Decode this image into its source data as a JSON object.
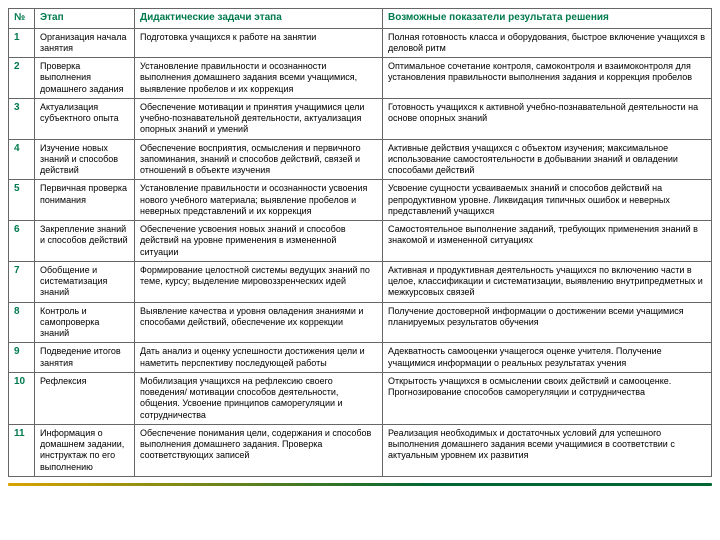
{
  "headers": {
    "num": "№",
    "stage": "Этап",
    "tasks": "Дидактические задачи этапа",
    "results": "Возможные показатели результата решения"
  },
  "rows": [
    {
      "n": "1",
      "stage": "Организация начала занятия",
      "task": "Подготовка учащихся к работе на занятии",
      "result": "Полная готовность класса и оборудования, быстрое включение учащихся в деловой ритм"
    },
    {
      "n": "2",
      "stage": "Проверка выполнения домашнего задания",
      "task": "Установление правильности и осознанности выполнения домашнего задания всеми учащимися, выявление пробелов и их коррекция",
      "result": "Оптимальное сочетание контроля, самоконтроля и взаимоконтроля для установления правильности выполнения задания и коррекция пробелов"
    },
    {
      "n": "3",
      "stage": "Актуализация субъектного опыта",
      "task": "Обеспечение мотивации и принятия учащимися цели учебно-познавательной деятельности, актуализация опорных знаний и умений",
      "result": "Готовность учащихся к активной учебно-познавательной деятельности на основе опорных знаний"
    },
    {
      "n": "4",
      "stage": "Изучение новых знаний и способов действий",
      "task": "Обеспечение восприятия, осмысления и первичного запоминания, знаний и способов действий, связей и отношений в объекте изучения",
      "result": "Активные действия учащихся с объектом изучения; максимальное использование самостоятельности в добывании знаний и овладении способами действий"
    },
    {
      "n": "5",
      "stage": "Первичная проверка понимания",
      "task": "Установление правильности и осознанности усвоения нового учебного материала; выявление пробелов и неверных представлений и их коррекция",
      "result": "Усвоение сущности усваиваемых знаний и способов действий на репродуктивном уровне. Ликвидация типичных ошибок и неверных представлений учащихся"
    },
    {
      "n": "6",
      "stage": "Закрепление знаний и способов действий",
      "task": "Обеспечение усвоения новых знаний и способов действий на уровне применения в измененной ситуации",
      "result": "Самостоятельное выполнение заданий, требующих применения знаний в знакомой и измененной ситуациях"
    },
    {
      "n": "7",
      "stage": "Обобщение и систематизация знаний",
      "task": "Формирование целостной системы ведущих знаний по теме, курсу; выделение мировоззренческих идей",
      "result": "Активная и продуктивная деятельность учащихся по включению части в целое, классификации и систематизации, выявлению внутрипредметных и межкурсовых связей"
    },
    {
      "n": "8",
      "stage": "Контроль и самопроверка знаний",
      "task": "Выявление качества и уровня овладения знаниями и способами действий, обеспечение их коррекции",
      "result": "Получение достоверной информации о достижении всеми учащимися планируемых результатов обучения"
    },
    {
      "n": "9",
      "stage": "Подведение итогов занятия",
      "task": "Дать анализ и оценку успешности достижения цели и наметить перспективу последующей работы",
      "result": "Адекватность самооценки учащегося оценке учителя. Получение учащимися информации о реальных результатах учения"
    },
    {
      "n": "10",
      "stage": "Рефлексия",
      "task": "Мобилизация учащихся на рефлексию своего поведения/ мотивации способов деятельности, общения. Усвоение принципов саморегуляции и сотрудничества",
      "result": "Открытость учащихся в осмыслении своих действий и самооценке. Прогнозирование способов саморегуляции и сотрудничества"
    },
    {
      "n": "11",
      "stage": "Информация о домашнем задании, инструктаж по его выполнению",
      "task": "Обеспечение понимания цели, содержания и способов выполнения домашнего задания. Проверка соответствующих записей",
      "result": "Реализация необходимых и достаточных условий для успешного выполнения домашнего задания всеми учащимися в соответствии с актуальным уровнем их развития"
    }
  ],
  "colors": {
    "header_text": "#007a4d",
    "border": "#666666",
    "footer_start": "#d9a300",
    "footer_end": "#006633"
  }
}
